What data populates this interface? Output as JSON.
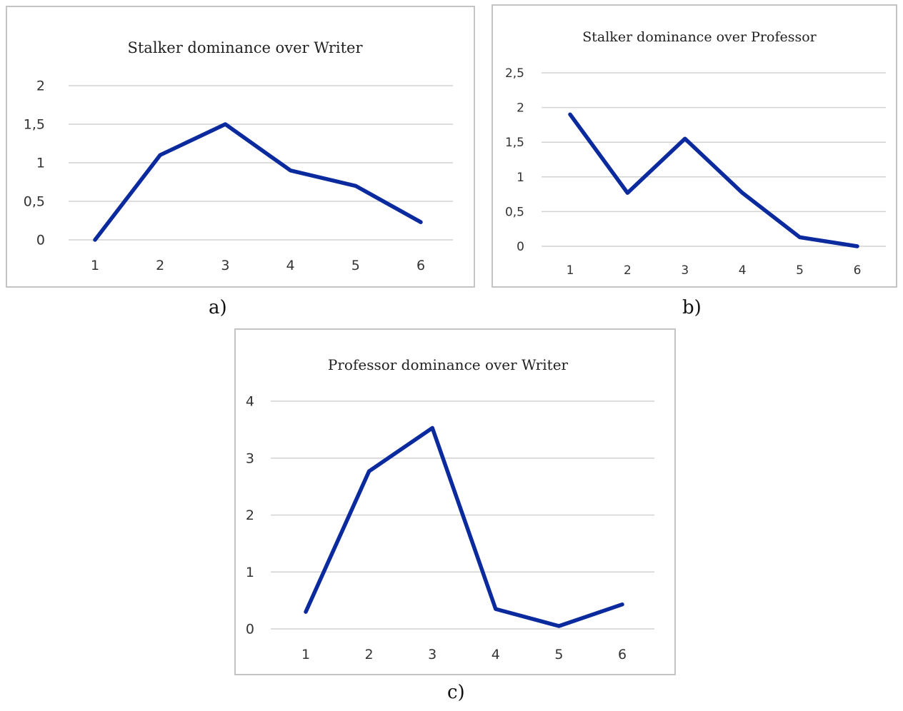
{
  "colors": {
    "series": "#0a2a9e",
    "grid": "#d2d2d2",
    "border": "#c4c4c4"
  },
  "panels": [
    {
      "caption": "a)"
    },
    {
      "caption": "b)"
    },
    {
      "caption": "c)"
    }
  ],
  "chart_data": [
    {
      "type": "line",
      "title": "Stalker dominance over Writer",
      "x": [
        1,
        2,
        3,
        4,
        5,
        6
      ],
      "series": [
        {
          "values": [
            0,
            1.1,
            1.5,
            0.9,
            0.7,
            0.23
          ]
        }
      ],
      "ylim": [
        0,
        2
      ],
      "yticks": [
        "0",
        "0,5",
        "1",
        "1,5",
        "2"
      ],
      "ytick_values": [
        0,
        0.5,
        1,
        1.5,
        2
      ],
      "xticks": [
        "1",
        "2",
        "3",
        "4",
        "5",
        "6"
      ],
      "grid": true,
      "legend": "none"
    },
    {
      "type": "line",
      "title": "Stalker dominance over Professor",
      "x": [
        1,
        2,
        3,
        4,
        5,
        6
      ],
      "series": [
        {
          "values": [
            1.9,
            0.77,
            1.55,
            0.77,
            0.13,
            0.0
          ]
        }
      ],
      "ylim": [
        0,
        2.5
      ],
      "yticks": [
        "0",
        "0,5",
        "1",
        "1,5",
        "2",
        "2,5"
      ],
      "ytick_values": [
        0,
        0.5,
        1,
        1.5,
        2,
        2.5
      ],
      "xticks": [
        "1",
        "2",
        "3",
        "4",
        "5",
        "6"
      ],
      "grid": true,
      "legend": "none"
    },
    {
      "type": "line",
      "title": "Professor dominance over Writer",
      "x": [
        1,
        2,
        3,
        4,
        5,
        6
      ],
      "series": [
        {
          "values": [
            0.3,
            2.77,
            3.53,
            0.35,
            0.05,
            0.43
          ]
        }
      ],
      "ylim": [
        0,
        4
      ],
      "yticks": [
        "0",
        "1",
        "2",
        "3",
        "4"
      ],
      "ytick_values": [
        0,
        1,
        2,
        3,
        4
      ],
      "xticks": [
        "1",
        "2",
        "3",
        "4",
        "5",
        "6"
      ],
      "grid": true,
      "legend": "none"
    }
  ]
}
